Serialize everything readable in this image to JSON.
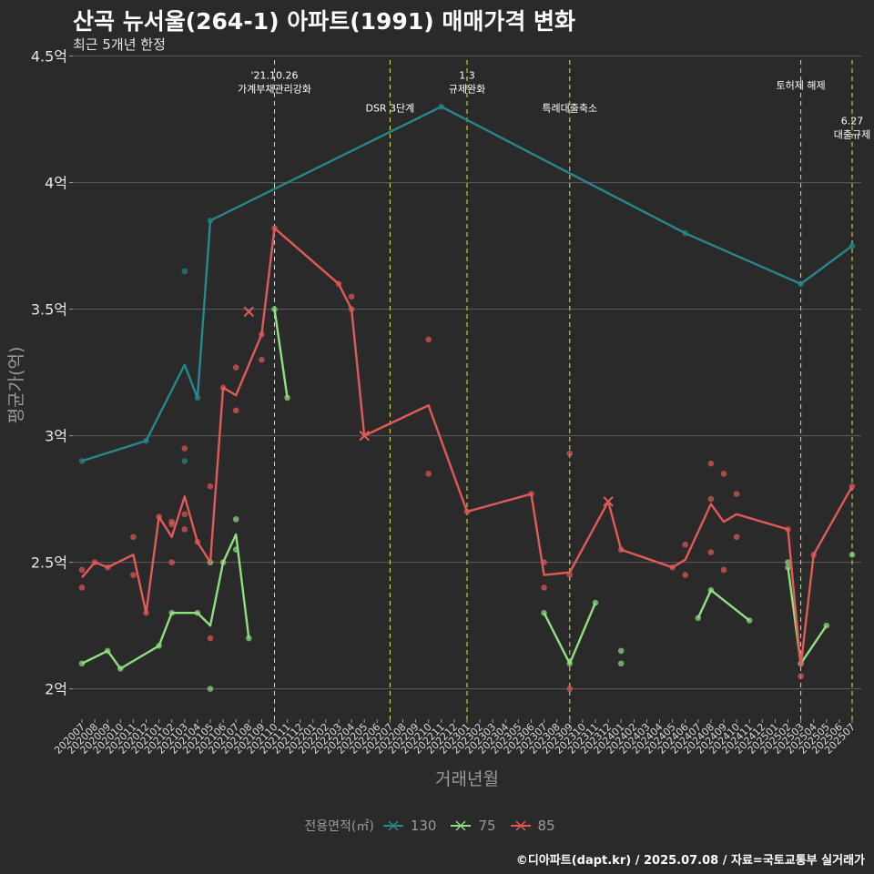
{
  "header": {
    "title": "산곡 뉴서울(264-1) 아파트(1991) 매매가격 변화",
    "subtitle": "최근 5개년 한정"
  },
  "caption": "©디아파트(dapt.kr) / 2025.07.08 / 자료=국토교통부 실거래가",
  "legend": {
    "title": "전용면적(㎡)",
    "items": [
      {
        "label": "130",
        "color": "#26888a"
      },
      {
        "label": "75",
        "color": "#8fe07f"
      },
      {
        "label": "85",
        "color": "#e05a58"
      }
    ]
  },
  "chart_data": {
    "type": "line",
    "xlabel": "거래년월",
    "ylabel": "평균가(억)",
    "ylim": [
      1.88,
      4.52
    ],
    "yticks": [
      2,
      2.5,
      3,
      3.5,
      4,
      4.5
    ],
    "ytick_labels": [
      "2억",
      "2.5억",
      "3억",
      "3.5억",
      "4억",
      "4.5억"
    ],
    "categories": [
      "202007",
      "202008",
      "202009",
      "202010",
      "202011",
      "202012",
      "202101",
      "202102",
      "202103",
      "202104",
      "202105",
      "202106",
      "202107",
      "202108",
      "202109",
      "202110",
      "202111",
      "202112",
      "202201",
      "202202",
      "202203",
      "202204",
      "202205",
      "202206",
      "202207",
      "202208",
      "202209",
      "202210",
      "202211",
      "202212",
      "202301",
      "202302",
      "202303",
      "202304",
      "202305",
      "202306",
      "202307",
      "202308",
      "202309",
      "202310",
      "202311",
      "202312",
      "202401",
      "202402",
      "202403",
      "202404",
      "202405",
      "202406",
      "202407",
      "202408",
      "202409",
      "202410",
      "202411",
      "202412",
      "202501",
      "202502",
      "202503",
      "202504",
      "202505",
      "202506",
      "202507"
    ],
    "series": [
      {
        "name": "130",
        "color": "#26888a",
        "line": [
          [
            "202007",
            2.9
          ],
          [
            "202012",
            2.98
          ],
          [
            "202103",
            3.28
          ],
          [
            "202104",
            3.15
          ],
          [
            "202105",
            3.85
          ],
          [
            "202211",
            4.3
          ],
          [
            "202406",
            3.8
          ],
          [
            "202503",
            3.6
          ],
          [
            "202507",
            3.75
          ]
        ],
        "points": [
          [
            "202007",
            2.9
          ],
          [
            "202012",
            2.98
          ],
          [
            "202103",
            3.65
          ],
          [
            "202103",
            2.9
          ],
          [
            "202104",
            3.15
          ],
          [
            "202105",
            3.85
          ],
          [
            "202211",
            4.3
          ],
          [
            "202406",
            3.8
          ],
          [
            "202503",
            3.6
          ],
          [
            "202507",
            3.75
          ]
        ]
      },
      {
        "name": "75",
        "color": "#8fe07f",
        "line": [
          [
            "202007",
            2.1
          ],
          [
            "202009",
            2.15
          ],
          [
            "202010",
            2.08
          ],
          [
            "202101",
            2.17
          ],
          [
            "202102",
            2.3
          ],
          [
            "202104",
            2.3
          ],
          [
            "202105",
            2.25
          ],
          [
            "202106",
            2.5
          ],
          [
            "202107",
            2.61
          ],
          [
            "202108",
            2.2
          ]
        ],
        "line2": [
          [
            "202110",
            3.5
          ],
          [
            "202111",
            3.15
          ]
        ],
        "line3": [
          [
            "202307",
            2.3
          ],
          [
            "202309",
            2.1
          ],
          [
            "202311",
            2.34
          ]
        ],
        "line4": [
          [
            "202407",
            2.28
          ],
          [
            "202408",
            2.39
          ],
          [
            "202411",
            2.27
          ]
        ],
        "line5": [
          [
            "202502",
            2.48
          ],
          [
            "202503",
            2.1
          ],
          [
            "202505",
            2.25
          ]
        ],
        "points": [
          [
            "202007",
            2.1
          ],
          [
            "202009",
            2.15
          ],
          [
            "202010",
            2.08
          ],
          [
            "202101",
            2.17
          ],
          [
            "202102",
            2.3
          ],
          [
            "202104",
            2.3
          ],
          [
            "202105",
            2.5
          ],
          [
            "202105",
            2.0
          ],
          [
            "202106",
            2.5
          ],
          [
            "202107",
            2.67
          ],
          [
            "202107",
            2.55
          ],
          [
            "202108",
            2.2
          ],
          [
            "202110",
            3.5
          ],
          [
            "202111",
            3.15
          ],
          [
            "202307",
            2.3
          ],
          [
            "202309",
            2.1
          ],
          [
            "202311",
            2.34
          ],
          [
            "202401",
            2.15
          ],
          [
            "202401",
            2.1
          ],
          [
            "202407",
            2.28
          ],
          [
            "202408",
            2.39
          ],
          [
            "202411",
            2.27
          ],
          [
            "202502",
            2.5
          ],
          [
            "202502",
            2.48
          ],
          [
            "202503",
            2.1
          ],
          [
            "202505",
            2.25
          ],
          [
            "202507",
            2.53
          ]
        ]
      },
      {
        "name": "85",
        "color": "#e05a58",
        "line": [
          [
            "202007",
            2.44
          ],
          [
            "202008",
            2.5
          ],
          [
            "202009",
            2.48
          ],
          [
            "202011",
            2.53
          ],
          [
            "202012",
            2.3
          ],
          [
            "202101",
            2.68
          ],
          [
            "202102",
            2.6
          ],
          [
            "202103",
            2.76
          ],
          [
            "202104",
            2.58
          ],
          [
            "202105",
            2.5
          ],
          [
            "202106",
            3.19
          ],
          [
            "202107",
            3.16
          ],
          [
            "202109",
            3.4
          ],
          [
            "202110",
            3.82
          ],
          [
            "202203",
            3.6
          ],
          [
            "202204",
            3.5
          ],
          [
            "202205",
            3.0
          ],
          [
            "202210",
            3.12
          ],
          [
            "202301",
            2.7
          ],
          [
            "202306",
            2.77
          ],
          [
            "202307",
            2.45
          ],
          [
            "202309",
            2.46
          ],
          [
            "202312",
            2.74
          ],
          [
            "202401",
            2.55
          ],
          [
            "202405",
            2.48
          ],
          [
            "202406",
            2.51
          ],
          [
            "202408",
            2.73
          ],
          [
            "202409",
            2.66
          ],
          [
            "202410",
            2.69
          ],
          [
            "202502",
            2.63
          ],
          [
            "202503",
            2.09
          ],
          [
            "202504",
            2.53
          ],
          [
            "202507",
            2.8
          ]
        ],
        "points": [
          [
            "202007",
            2.47
          ],
          [
            "202007",
            2.4
          ],
          [
            "202008",
            2.5
          ],
          [
            "202009",
            2.48
          ],
          [
            "202011",
            2.6
          ],
          [
            "202011",
            2.45
          ],
          [
            "202012",
            2.3
          ],
          [
            "202101",
            2.68
          ],
          [
            "202102",
            2.66
          ],
          [
            "202102",
            2.65
          ],
          [
            "202102",
            2.5
          ],
          [
            "202103",
            2.95
          ],
          [
            "202103",
            2.69
          ],
          [
            "202103",
            2.63
          ],
          [
            "202104",
            2.58
          ],
          [
            "202105",
            2.8
          ],
          [
            "202105",
            2.2
          ],
          [
            "202106",
            3.19
          ],
          [
            "202107",
            3.27
          ],
          [
            "202107",
            3.1
          ],
          [
            "202109",
            3.4
          ],
          [
            "202109",
            3.3
          ],
          [
            "202110",
            3.82
          ],
          [
            "202203",
            3.6
          ],
          [
            "202204",
            3.55
          ],
          [
            "202204",
            3.5
          ],
          [
            "202210",
            3.38
          ],
          [
            "202210",
            2.85
          ],
          [
            "202301",
            2.7
          ],
          [
            "202306",
            2.77
          ],
          [
            "202307",
            2.5
          ],
          [
            "202307",
            2.4
          ],
          [
            "202309",
            2.93
          ],
          [
            "202309",
            2.45
          ],
          [
            "202309",
            2.0
          ],
          [
            "202401",
            2.55
          ],
          [
            "202405",
            2.48
          ],
          [
            "202406",
            2.57
          ],
          [
            "202406",
            2.45
          ],
          [
            "202408",
            2.89
          ],
          [
            "202408",
            2.75
          ],
          [
            "202408",
            2.54
          ],
          [
            "202409",
            2.85
          ],
          [
            "202409",
            2.47
          ],
          [
            "202410",
            2.77
          ],
          [
            "202410",
            2.6
          ],
          [
            "202502",
            2.63
          ],
          [
            "202503",
            2.05
          ],
          [
            "202504",
            2.53
          ],
          [
            "202507",
            2.8
          ]
        ]
      }
    ],
    "cross_markers": [
      {
        "series": "85",
        "x": "202108",
        "y": 3.49
      },
      {
        "series": "85",
        "x": "202205",
        "y": 3.0
      },
      {
        "series": "85",
        "x": "202312",
        "y": 2.74
      }
    ],
    "events": [
      {
        "x": "202110",
        "label_lines": [
          "'21.10.26",
          "가계부채관리강화"
        ],
        "label_y": 4.41
      },
      {
        "x": "202207",
        "label_lines": [
          "DSR 3단계"
        ],
        "label_y": 4.28
      },
      {
        "x": "202301",
        "label_lines": [
          "1.3",
          "규제완화"
        ],
        "label_y": 4.41
      },
      {
        "x": "202309",
        "label_lines": [
          "특례대출축소"
        ],
        "label_y": 4.28
      },
      {
        "x": "202503",
        "label_lines": [
          "토허제 해제"
        ],
        "label_y": 4.37
      },
      {
        "x": "202507",
        "label_lines": [
          "6.27",
          "대출규제"
        ],
        "label_y": 4.23
      }
    ],
    "grid": true,
    "legend_position": "bottom"
  }
}
